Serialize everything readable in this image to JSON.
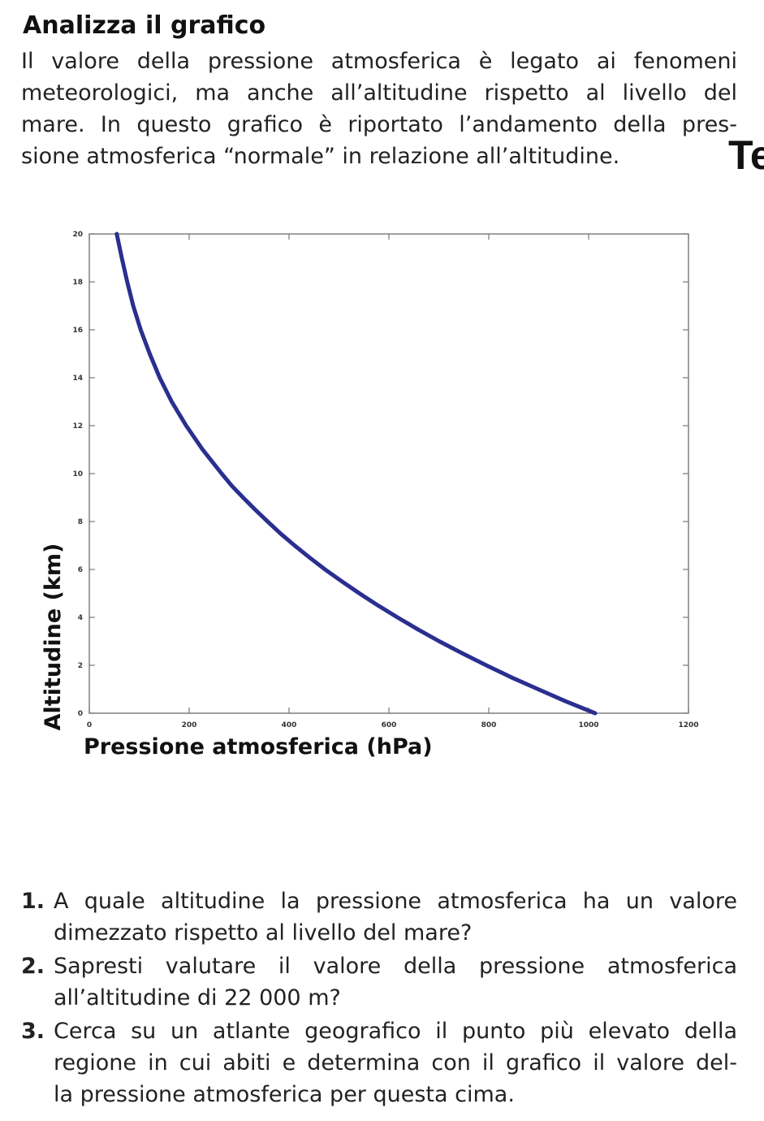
{
  "heading": "Analizza il grafico",
  "intro_lines": [
    "Il valore della pressione atmosferica è legato ai fenomeni",
    "meteorologici, ma anche all’altitudine rispetto al livello del",
    "mare. In questo grafico è riportato l’andamento della pres-",
    "sione atmosferica “normale” in relazione all’altitudine."
  ],
  "cut_letter": "Te",
  "chart_data": {
    "type": "line",
    "xlabel": "Pressione atmosferica (hPa)",
    "ylabel": "Altitudine (km)",
    "xlim": [
      0,
      1200
    ],
    "ylim": [
      0,
      20
    ],
    "xticks": [
      "0",
      "200",
      "400",
      "600",
      "800",
      "1000",
      "1200"
    ],
    "yticks": [
      "0",
      "2",
      "4",
      "6",
      "8",
      "10",
      "12",
      "14",
      "16",
      "18",
      "20"
    ],
    "grid": false,
    "line_color": "#2a2f8f",
    "series": [
      {
        "x": [
          1013,
          954,
          899,
          845,
          795,
          747,
          701,
          658,
          617,
          578,
          541,
          506,
          472,
          441,
          411,
          383,
          357,
          332,
          308,
          285,
          265,
          227,
          194,
          165,
          141,
          121,
          103,
          88,
          76,
          65,
          55
        ],
        "y": [
          0,
          0.5,
          1,
          1.5,
          2,
          2.5,
          3,
          3.5,
          4,
          4.5,
          5,
          5.5,
          6,
          6.5,
          7,
          7.5,
          8,
          8.5,
          9,
          9.5,
          10,
          11,
          12,
          13,
          14,
          15,
          16,
          17,
          18,
          19,
          20
        ]
      }
    ]
  },
  "questions": [
    {
      "num": "1.",
      "lines": [
        "A quale altitudine la pressione atmosferica ha un valore",
        "dimezzato rispetto al livello del mare?"
      ]
    },
    {
      "num": "2.",
      "lines": [
        "Sapresti valutare il valore della pressione atmosferica",
        "all’altitudine di 22 000 m?"
      ]
    },
    {
      "num": "3.",
      "lines": [
        "Cerca su un atlante geografico il punto più elevato della",
        "regione in cui abiti e determina con il grafico il valore del-",
        "la pressione atmosferica per questa cima."
      ]
    }
  ]
}
